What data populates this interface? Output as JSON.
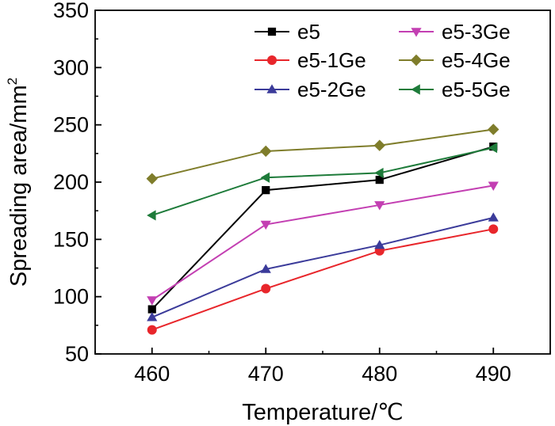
{
  "chart_data": {
    "type": "line",
    "title": "",
    "xlabel": "Temperature/℃",
    "ylabel_main": "Spreading area/mm",
    "ylabel_superscript": "2",
    "x": [
      460,
      470,
      480,
      490
    ],
    "x_tick_labels": [
      "460",
      "470",
      "480",
      "490"
    ],
    "xlim": [
      455,
      495
    ],
    "ylim": [
      50,
      350
    ],
    "y_ticks": [
      50,
      100,
      150,
      200,
      250,
      300,
      350
    ],
    "y_tick_labels": [
      "50",
      "100",
      "150",
      "200",
      "250",
      "300",
      "350"
    ],
    "grid": false,
    "legend_position": "top-right",
    "series": [
      {
        "name": "e5",
        "marker": "square",
        "color": "#000000",
        "values": [
          89,
          193,
          202,
          231
        ]
      },
      {
        "name": "e5-1Ge",
        "marker": "circle",
        "color": "#e8262b",
        "values": [
          71,
          107,
          140,
          159
        ]
      },
      {
        "name": "e5-2Ge",
        "marker": "triangle-up",
        "color": "#3b3b9a",
        "values": [
          82,
          124,
          145,
          169
        ]
      },
      {
        "name": "e5-3Ge",
        "marker": "triangle-down",
        "color": "#c33fb2",
        "values": [
          97,
          163,
          180,
          197
        ]
      },
      {
        "name": "e5-4Ge",
        "marker": "diamond",
        "color": "#7f7d2b",
        "values": [
          203,
          227,
          232,
          246
        ]
      },
      {
        "name": "e5-5Ge",
        "marker": "triangle-left",
        "color": "#1e7b3a",
        "values": [
          171,
          204,
          208,
          230
        ]
      }
    ]
  }
}
